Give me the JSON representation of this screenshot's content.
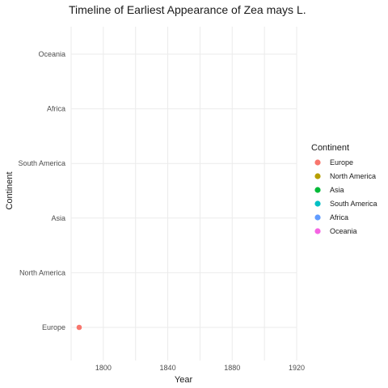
{
  "chart_data": {
    "type": "scatter",
    "title": "Timeline of Earliest Appearance of Zea mays L.",
    "xlabel": "Year",
    "ylabel": "Continent",
    "xlim": [
      1780,
      1920
    ],
    "x_ticks": [
      1800,
      1840,
      1880,
      1920
    ],
    "categories": [
      "Europe",
      "North America",
      "Asia",
      "South America",
      "Africa",
      "Oceania"
    ],
    "grid": true,
    "legend": {
      "title": "Continent",
      "placement": "right",
      "items": [
        {
          "name": "Europe",
          "color": "#F8766D"
        },
        {
          "name": "North America",
          "color": "#B79F00"
        },
        {
          "name": "Asia",
          "color": "#00BA38"
        },
        {
          "name": "South America",
          "color": "#00BFC4"
        },
        {
          "name": "Africa",
          "color": "#619CFF"
        },
        {
          "name": "Oceania",
          "color": "#F564E3"
        }
      ]
    },
    "points": [
      {
        "continent": "Europe",
        "x": 1785
      }
    ]
  }
}
